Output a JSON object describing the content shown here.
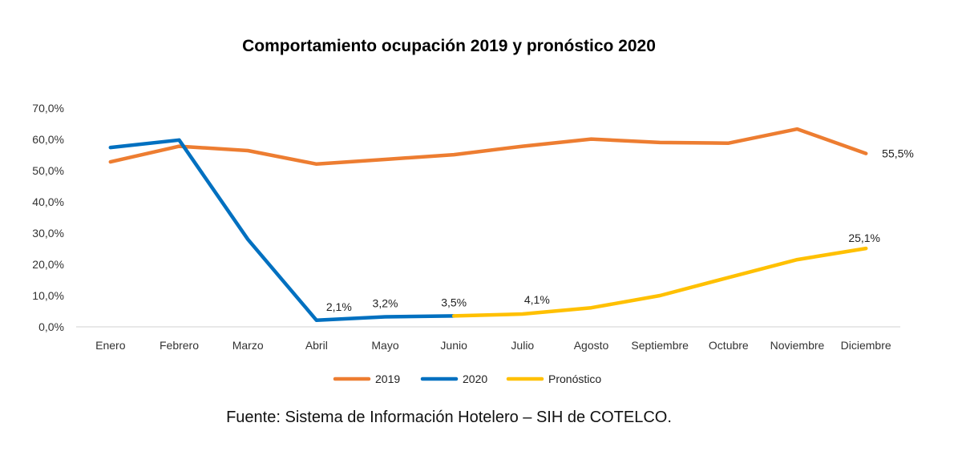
{
  "chart_data": {
    "type": "line",
    "title": "Comportamiento ocupación 2019 y pronóstico 2020",
    "xlabel": "",
    "ylabel": "",
    "ylim": [
      0,
      70
    ],
    "yticks": [
      0,
      10,
      20,
      30,
      40,
      50,
      60,
      70
    ],
    "ytick_labels": [
      "0,0%",
      "10,0%",
      "20,0%",
      "30,0%",
      "40,0%",
      "50,0%",
      "60,0%",
      "70,0%"
    ],
    "categories": [
      "Enero",
      "Febrero",
      "Marzo",
      "Abril",
      "Mayo",
      "Junio",
      "Julio",
      "Agosto",
      "Septiembre",
      "Octubre",
      "Noviembre",
      "Diciembre"
    ],
    "grid": false,
    "legend_position": "bottom",
    "series": [
      {
        "name": "2019",
        "color": "#ED7D31",
        "values": [
          52.8,
          57.8,
          56.4,
          52.1,
          53.6,
          55.1,
          57.8,
          60.1,
          59.0,
          58.8,
          63.3,
          55.5
        ]
      },
      {
        "name": "2020",
        "color": "#0070C0",
        "values": [
          57.4,
          59.8,
          28.0,
          2.1,
          3.2,
          3.5,
          null,
          null,
          null,
          null,
          null,
          null
        ]
      },
      {
        "name": "Pronóstico",
        "color": "#FFC000",
        "values": [
          null,
          null,
          null,
          null,
          null,
          3.5,
          4.1,
          6.1,
          10.0,
          15.8,
          21.5,
          25.1
        ]
      }
    ],
    "data_labels": [
      {
        "series": "2020",
        "index": 3,
        "text": "2,1%"
      },
      {
        "series": "2020",
        "index": 4,
        "text": "3,2%"
      },
      {
        "series": "2020",
        "index": 5,
        "text": "3,5%"
      },
      {
        "series": "Pronóstico",
        "index": 6,
        "text": "4,1%"
      },
      {
        "series": "Pronóstico",
        "index": 11,
        "text": "25,1%"
      },
      {
        "series": "2019",
        "index": 11,
        "text": "55,5%"
      }
    ]
  },
  "source": "Fuente: Sistema de Información Hotelero – SIH de COTELCO."
}
